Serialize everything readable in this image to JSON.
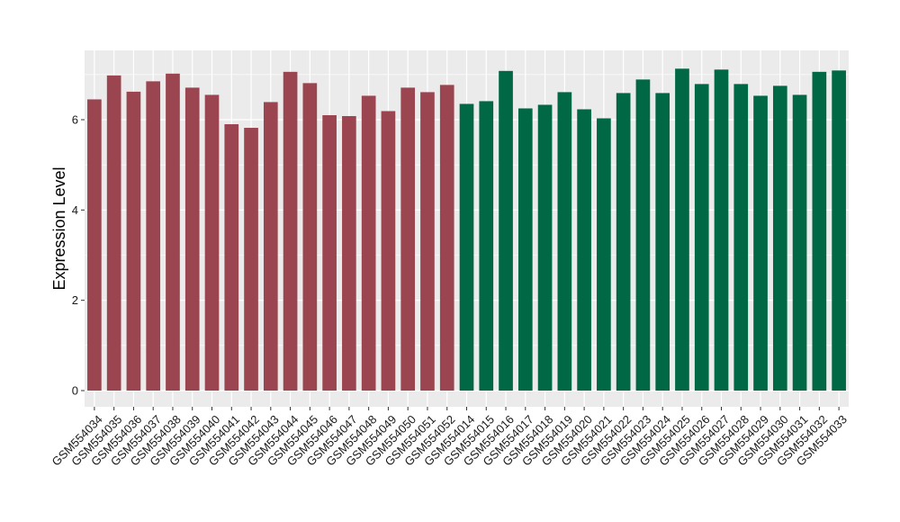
{
  "chart_data": {
    "type": "bar",
    "title": "",
    "xlabel": "",
    "ylabel": "Expression Level",
    "ylim": [
      0,
      7.5
    ],
    "yticks": [
      0,
      2,
      4,
      6
    ],
    "grid": true,
    "legend": "none",
    "background_color": "#ebebeb",
    "grid_color": "#ffffff",
    "categories": [
      "GSM554034",
      "GSM554035",
      "GSM554036",
      "GSM554037",
      "GSM554038",
      "GSM554039",
      "GSM554040",
      "GSM554041",
      "GSM554042",
      "GSM554043",
      "GSM554044",
      "GSM554045",
      "GSM554046",
      "GSM554047",
      "GSM554048",
      "GSM554049",
      "GSM554050",
      "GSM554051",
      "GSM554052",
      "GSM554014",
      "GSM554015",
      "GSM554016",
      "GSM554017",
      "GSM554018",
      "GSM554019",
      "GSM554020",
      "GSM554021",
      "GSM554022",
      "GSM554023",
      "GSM554024",
      "GSM554025",
      "GSM554026",
      "GSM554027",
      "GSM554028",
      "GSM554029",
      "GSM554030",
      "GSM554031",
      "GSM554032",
      "GSM554033"
    ],
    "values": [
      6.45,
      6.98,
      6.62,
      6.85,
      7.02,
      6.71,
      6.55,
      5.9,
      5.82,
      6.39,
      7.06,
      6.81,
      6.1,
      6.08,
      6.53,
      6.19,
      6.71,
      6.61,
      6.77,
      6.35,
      6.41,
      7.08,
      6.25,
      6.33,
      6.61,
      6.23,
      6.03,
      6.59,
      6.89,
      6.59,
      7.13,
      6.79,
      7.11,
      6.79,
      6.53,
      6.75,
      6.55,
      7.06,
      7.09
    ],
    "bar_colors": [
      "#9b4550",
      "#9b4550",
      "#9b4550",
      "#9b4550",
      "#9b4550",
      "#9b4550",
      "#9b4550",
      "#9b4550",
      "#9b4550",
      "#9b4550",
      "#9b4550",
      "#9b4550",
      "#9b4550",
      "#9b4550",
      "#9b4550",
      "#9b4550",
      "#9b4550",
      "#9b4550",
      "#9b4550",
      "#006845",
      "#006845",
      "#006845",
      "#006845",
      "#006845",
      "#006845",
      "#006845",
      "#006845",
      "#006845",
      "#006845",
      "#006845",
      "#006845",
      "#006845",
      "#006845",
      "#006845",
      "#006845",
      "#006845",
      "#006845",
      "#006845",
      "#006845"
    ]
  }
}
